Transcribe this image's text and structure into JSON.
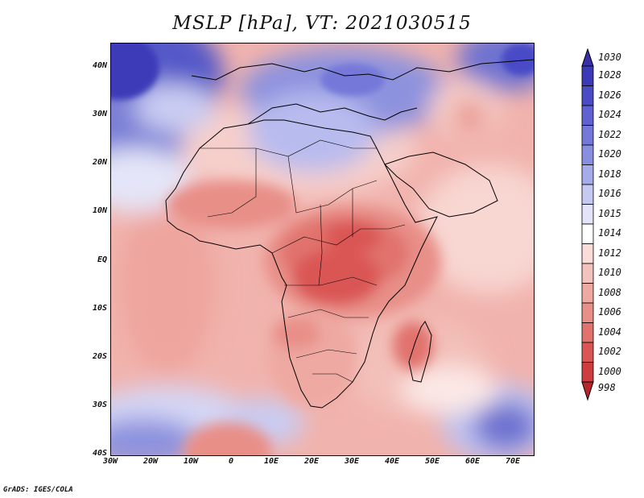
{
  "title": "MSLP [hPa], VT: 2021030515",
  "credit": "GrADS: IGES/COLA",
  "map": {
    "projection": "lat-lon",
    "lon_range": [
      -30,
      75
    ],
    "lat_range": [
      -40,
      45
    ],
    "lat_ticks": [
      {
        "value": 40,
        "label": "40N"
      },
      {
        "value": 30,
        "label": "30N"
      },
      {
        "value": 20,
        "label": "20N"
      },
      {
        "value": 10,
        "label": "10N"
      },
      {
        "value": 0,
        "label": "EQ"
      },
      {
        "value": -10,
        "label": "10S"
      },
      {
        "value": -20,
        "label": "20S"
      },
      {
        "value": -30,
        "label": "30S"
      },
      {
        "value": -40,
        "label": "40S"
      }
    ],
    "lon_ticks": [
      {
        "value": -30,
        "label": "30W"
      },
      {
        "value": -20,
        "label": "20W"
      },
      {
        "value": -10,
        "label": "10W"
      },
      {
        "value": 0,
        "label": "0"
      },
      {
        "value": 10,
        "label": "10E"
      },
      {
        "value": 20,
        "label": "20E"
      },
      {
        "value": 30,
        "label": "30E"
      },
      {
        "value": 40,
        "label": "40E"
      },
      {
        "value": 50,
        "label": "50E"
      },
      {
        "value": 60,
        "label": "60E"
      },
      {
        "value": 70,
        "label": "70E"
      }
    ]
  },
  "colorbar": {
    "levels": [
      {
        "label": "1030",
        "color": "#3a2fa8"
      },
      {
        "label": "1028",
        "color": "#3d3ab8"
      },
      {
        "label": "1026",
        "color": "#4a4cc6"
      },
      {
        "label": "1024",
        "color": "#5f62d0"
      },
      {
        "label": "1022",
        "color": "#7478d8"
      },
      {
        "label": "1020",
        "color": "#898fe0"
      },
      {
        "label": "1018",
        "color": "#a6abea"
      },
      {
        "label": "1016",
        "color": "#c6c9f2"
      },
      {
        "label": "1015",
        "color": "#e3e4fa"
      },
      {
        "label": "1014",
        "color": "#ffffff"
      },
      {
        "label": "1012",
        "color": "#fbdcd8"
      },
      {
        "label": "1010",
        "color": "#f4c2bc"
      },
      {
        "label": "1008",
        "color": "#eea9a2"
      },
      {
        "label": "1006",
        "color": "#e88f88"
      },
      {
        "label": "1004",
        "color": "#e1726d"
      },
      {
        "label": "1002",
        "color": "#da5654"
      },
      {
        "label": "1000",
        "color": "#cf3d3e"
      },
      {
        "label": "998",
        "color": "#b8262c"
      }
    ]
  }
}
